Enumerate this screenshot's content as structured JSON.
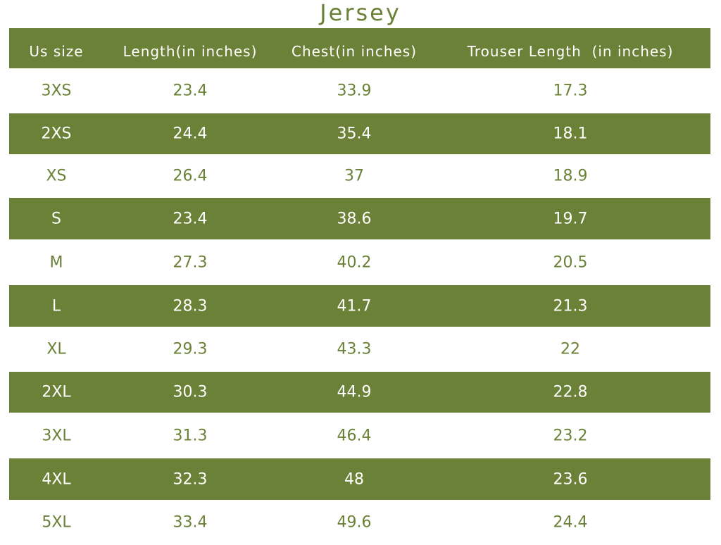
{
  "title": "Jersey",
  "table": {
    "header": [
      "Us size",
      "Length(in inches)",
      "Chest(in inches)",
      "Trouser Length  (in inches)"
    ],
    "rows": [
      [
        "3XS",
        "23.4",
        "33.9",
        "17.3"
      ],
      [
        "2XS",
        "24.4",
        "35.4",
        "18.1"
      ],
      [
        "XS",
        "26.4",
        "37",
        "18.9"
      ],
      [
        "S",
        "23.4",
        "38.6",
        "19.7"
      ],
      [
        "M",
        "27.3",
        "40.2",
        "20.5"
      ],
      [
        "L",
        "28.3",
        "41.7",
        "21.3"
      ],
      [
        "XL",
        "29.3",
        "43.3",
        "22"
      ],
      [
        "2XL",
        "30.3",
        "44.9",
        "22.8"
      ],
      [
        "3XL",
        "31.3",
        "46.4",
        "23.2"
      ],
      [
        "4XL",
        "32.3",
        "48",
        "23.6"
      ],
      [
        "5XL",
        "33.4",
        "49.6",
        "24.4"
      ]
    ]
  }
}
